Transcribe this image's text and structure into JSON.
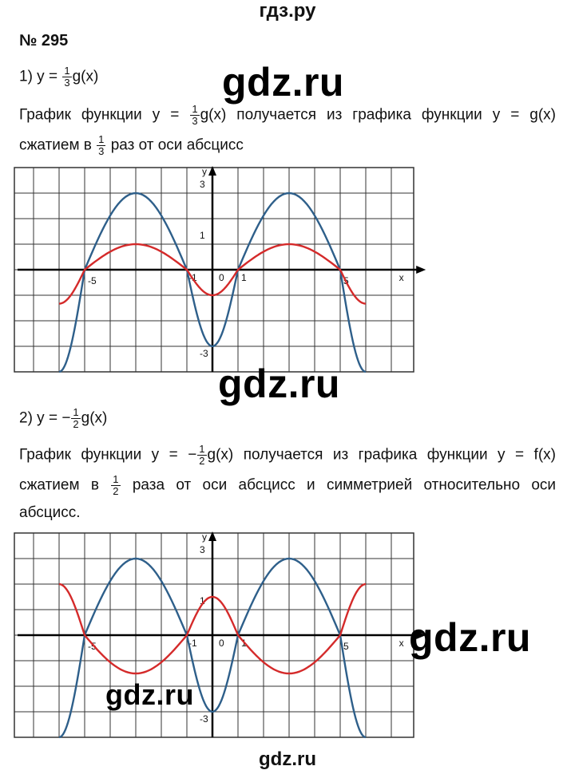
{
  "header": {
    "site": "гдз.ру"
  },
  "problem": {
    "number": "№ 295"
  },
  "part1": {
    "label": "1) y =",
    "frac": {
      "num": "1",
      "den": "3"
    },
    "tail": "g(x)",
    "text_a": "График функции y =",
    "text_a_frac": {
      "num": "1",
      "den": "3"
    },
    "text_a_tail": "g(x) получается из графика функции y = g(x)",
    "text_b_pre": "сжатием в",
    "text_b_frac": {
      "num": "1",
      "den": "3"
    },
    "text_b_post": "раз от оси абсцисс"
  },
  "part2": {
    "label": "2) y = −",
    "frac": {
      "num": "1",
      "den": "2"
    },
    "tail": "g(x)",
    "text_a": "График функции y = −",
    "text_a_frac": {
      "num": "1",
      "den": "2"
    },
    "text_a_tail": "g(x) получается из графика функции y = f(x)",
    "text_b_pre": "сжатием в",
    "text_b_frac": {
      "num": "1",
      "den": "2"
    },
    "text_b_post": "раза от оси абсцисс и симметрией относительно оси",
    "text_c": "абсцисс."
  },
  "watermarks": [
    "gdz.ru",
    "gdz.ru",
    "gdz.ru",
    "gdz.ru"
  ],
  "footer": {
    "mark": "gdz.ru"
  },
  "chart_data": [
    {
      "type": "line",
      "xlabel": "x",
      "ylabel": "y",
      "xlim": [
        -7.7,
        8
      ],
      "ylim": [
        -4,
        4
      ],
      "grid": true,
      "x_ticks": [
        "-5",
        "-1",
        "0",
        "1",
        "5"
      ],
      "y_ticks": [
        "3",
        "1",
        "-3"
      ],
      "series": [
        {
          "color": "#2e5f8a",
          "x": [
            -6,
            -5,
            -3,
            -1,
            0,
            1,
            3,
            5,
            6
          ],
          "y": [
            -4,
            0,
            3,
            0,
            -3,
            0,
            3,
            0,
            -4
          ]
        },
        {
          "color": "#d42a2a",
          "x": [
            -6,
            -5,
            -3,
            -1,
            0,
            1,
            3,
            5,
            6
          ],
          "y": [
            -1.33,
            0,
            1,
            0,
            -1,
            0,
            1,
            0,
            -1.33
          ]
        }
      ]
    },
    {
      "type": "line",
      "xlabel": "x",
      "ylabel": "y",
      "xlim": [
        -7.7,
        8
      ],
      "ylim": [
        -4,
        4
      ],
      "grid": true,
      "x_ticks": [
        "-5",
        "-1",
        "0",
        "1",
        "5"
      ],
      "y_ticks": [
        "3",
        "1",
        "-3"
      ],
      "series": [
        {
          "color": "#2e5f8a",
          "x": [
            -6,
            -5,
            -3,
            -1,
            0,
            1,
            3,
            5,
            6
          ],
          "y": [
            -4,
            0,
            3,
            0,
            -3,
            0,
            3,
            0,
            -4
          ]
        },
        {
          "color": "#d42a2a",
          "x": [
            -6,
            -5,
            -3,
            -1,
            0,
            1,
            3,
            5,
            6
          ],
          "y": [
            2,
            0,
            -1.5,
            0,
            1.5,
            0,
            -1.5,
            0,
            2
          ]
        }
      ]
    }
  ]
}
